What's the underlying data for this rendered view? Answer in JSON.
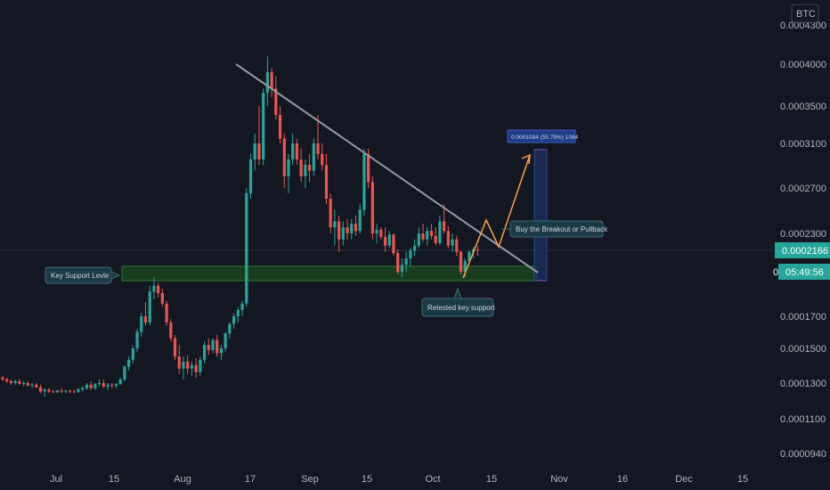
{
  "chart_data": {
    "type": "candlestick",
    "symbol_badge": "BTC",
    "price_axis_ticks": [
      "0.0004300",
      "0.0004000",
      "0.0003500",
      "0.0003100",
      "0.0002700",
      "0.0002300",
      "0.0001700",
      "0.0001500",
      "0.0001300",
      "0.0001100",
      "0.0000940"
    ],
    "time_axis_ticks": [
      "Jul",
      "15",
      "Aug",
      "17",
      "Sep",
      "15",
      "Oct",
      "15",
      "Nov",
      "16",
      "Dec",
      "15"
    ],
    "last_price": "0.0002166",
    "countdown": "05:49:56",
    "countdown_prefix": "0",
    "annotations": {
      "measure": "0.0001084 (55.79%) 1084",
      "breakout": "Buy the Breakout or Pullback",
      "support": "Key Support Levle",
      "retest": "Retested key support"
    },
    "ohlc": [
      [
        0.000133,
        0.000134,
        0.000131,
        0.000132
      ],
      [
        0.000132,
        0.000133,
        0.00013,
        0.000131
      ],
      [
        0.000131,
        0.000132,
        0.000129,
        0.00013
      ],
      [
        0.00013,
        0.000132,
        0.000129,
        0.000131
      ],
      [
        0.000131,
        0.000132,
        0.000129,
        0.0001295
      ],
      [
        0.0001295,
        0.000131,
        0.000128,
        0.00013
      ],
      [
        0.00013,
        0.000131,
        0.000128,
        0.0001285
      ],
      [
        0.0001285,
        0.00013,
        0.000127,
        0.000129
      ],
      [
        0.000129,
        0.00013,
        0.000127,
        0.0001275
      ],
      [
        0.0001275,
        0.000129,
        0.000124,
        0.000125
      ],
      [
        0.000125,
        0.000127,
        0.000122,
        0.000126
      ],
      [
        0.000126,
        0.000127,
        0.000124,
        0.000125
      ],
      [
        0.000125,
        0.000126,
        0.000124,
        0.0001245
      ],
      [
        0.0001245,
        0.000126,
        0.000124,
        0.0001255
      ],
      [
        0.0001255,
        0.000127,
        0.000124,
        0.000125
      ],
      [
        0.000125,
        0.000126,
        0.000124,
        0.0001255
      ],
      [
        0.0001255,
        0.000126,
        0.000124,
        0.000125
      ],
      [
        0.000125,
        0.000126,
        0.000124,
        0.0001248
      ],
      [
        0.0001248,
        0.000127,
        0.000124,
        0.0001262
      ],
      [
        0.0001262,
        0.000128,
        0.000125,
        0.000127
      ],
      [
        0.000127,
        0.00013,
        0.000126,
        0.000129
      ],
      [
        0.000129,
        0.000131,
        0.000126,
        0.000127
      ],
      [
        0.000127,
        0.00013,
        0.000126,
        0.0001295
      ],
      [
        0.0001295,
        0.000132,
        0.000128,
        0.00013
      ],
      [
        0.00013,
        0.000132,
        0.000127,
        0.000128
      ],
      [
        0.000128,
        0.00013,
        0.000126,
        0.000129
      ],
      [
        0.000129,
        0.00013,
        0.000127,
        0.0001285
      ],
      [
        0.0001285,
        0.00013,
        0.000127,
        0.0001295
      ],
      [
        0.0001295,
        0.000133,
        0.000129,
        0.000132
      ],
      [
        0.000132,
        0.00014,
        0.000131,
        0.000139
      ],
      [
        0.000139,
        0.000145,
        0.000137,
        0.000143
      ],
      [
        0.000143,
        0.000152,
        0.000141,
        0.00015
      ],
      [
        0.00015,
        0.000162,
        0.000148,
        0.00016
      ],
      [
        0.00016,
        0.000172,
        0.000157,
        0.00017
      ],
      [
        0.00017,
        0.000179,
        0.000164,
        0.000166
      ],
      [
        0.000166,
        0.00019,
        0.000164,
        0.000186
      ],
      [
        0.000186,
        0.000196,
        0.000181,
        0.00019
      ],
      [
        0.00019,
        0.000192,
        0.000182,
        0.000185
      ],
      [
        0.000185,
        0.000188,
        0.000176,
        0.000178
      ],
      [
        0.000178,
        0.00018,
        0.000164,
        0.000166
      ],
      [
        0.000166,
        0.000168,
        0.000154,
        0.000156
      ],
      [
        0.000156,
        0.000158,
        0.000143,
        0.000145
      ],
      [
        0.000145,
        0.000152,
        0.000135,
        0.000138
      ],
      [
        0.000138,
        0.000145,
        0.000132,
        0.000142
      ],
      [
        0.000142,
        0.000146,
        0.000135,
        0.000138
      ],
      [
        0.000138,
        0.000142,
        0.000134,
        0.00014
      ],
      [
        0.00014,
        0.000144,
        0.000133,
        0.000136
      ],
      [
        0.000136,
        0.000145,
        0.000134,
        0.000143
      ],
      [
        0.000143,
        0.000154,
        0.000141,
        0.000152
      ],
      [
        0.000152,
        0.000156,
        0.000146,
        0.000149
      ],
      [
        0.000149,
        0.000156,
        0.000147,
        0.000155
      ],
      [
        0.000155,
        0.000158,
        0.000145,
        0.000147
      ],
      [
        0.000147,
        0.000152,
        0.000143,
        0.00015
      ],
      [
        0.00015,
        0.00016,
        0.000148,
        0.000159
      ],
      [
        0.000159,
        0.000166,
        0.000156,
        0.000165
      ],
      [
        0.000165,
        0.000172,
        0.000162,
        0.00017
      ],
      [
        0.00017,
        0.000176,
        0.000166,
        0.000174
      ],
      [
        0.000174,
        0.00018,
        0.00017,
        0.000178
      ],
      [
        0.000178,
        0.00027,
        0.000176,
        0.000265
      ],
      [
        0.000265,
        0.0003,
        0.00026,
        0.000295
      ],
      [
        0.000295,
        0.00032,
        0.000285,
        0.00031
      ],
      [
        0.00031,
        0.00035,
        0.00029,
        0.000295
      ],
      [
        0.000295,
        0.00037,
        0.00029,
        0.000365
      ],
      [
        0.000365,
        0.00041,
        0.00035,
        0.00039
      ],
      [
        0.00039,
        0.000395,
        0.00036,
        0.00037
      ],
      [
        0.00037,
        0.000385,
        0.000335,
        0.00034
      ],
      [
        0.00034,
        0.00035,
        0.00031,
        0.000315
      ],
      [
        0.000315,
        0.00032,
        0.00027,
        0.00028
      ],
      [
        0.00028,
        0.0003,
        0.000265,
        0.000295
      ],
      [
        0.000295,
        0.00032,
        0.00029,
        0.00031
      ],
      [
        0.00031,
        0.000315,
        0.00029,
        0.000295
      ],
      [
        0.000295,
        0.000305,
        0.000275,
        0.00028
      ],
      [
        0.00028,
        0.000295,
        0.00027,
        0.00029
      ],
      [
        0.00029,
        0.0003,
        0.000275,
        0.000285
      ],
      [
        0.000285,
        0.000315,
        0.00028,
        0.00031
      ],
      [
        0.00031,
        0.00034,
        0.000295,
        0.0003
      ],
      [
        0.0003,
        0.00031,
        0.000285,
        0.00029
      ],
      [
        0.00029,
        0.0003,
        0.000255,
        0.00026
      ],
      [
        0.00026,
        0.000265,
        0.00023,
        0.000235
      ],
      [
        0.000235,
        0.00025,
        0.00022,
        0.00024
      ],
      [
        0.00024,
        0.000245,
        0.000215,
        0.000225
      ],
      [
        0.000225,
        0.00024,
        0.00022,
        0.000235
      ],
      [
        0.000235,
        0.000242,
        0.000225,
        0.00023
      ],
      [
        0.00023,
        0.000242,
        0.000225,
        0.000238
      ],
      [
        0.000238,
        0.000245,
        0.000228,
        0.000232
      ],
      [
        0.000232,
        0.000255,
        0.00023,
        0.00025
      ],
      [
        0.00025,
        0.000305,
        0.000245,
        0.0003
      ],
      [
        0.0003,
        0.000305,
        0.00027,
        0.000275
      ],
      [
        0.000275,
        0.00028,
        0.000225,
        0.00023
      ],
      [
        0.00023,
        0.000238,
        0.000222,
        0.000233
      ],
      [
        0.000233,
        0.000235,
        0.000225,
        0.000227
      ],
      [
        0.000227,
        0.000235,
        0.000215,
        0.00022
      ],
      [
        0.00022,
        0.000232,
        0.000218,
        0.000229
      ],
      [
        0.000229,
        0.00023,
        0.000212,
        0.000214
      ],
      [
        0.000214,
        0.000217,
        0.000198,
        0.0002
      ],
      [
        0.0002,
        0.00021,
        0.000196,
        0.000205
      ],
      [
        0.000205,
        0.000215,
        0.0002,
        0.00021
      ],
      [
        0.00021,
        0.000218,
        0.000204,
        0.000216
      ],
      [
        0.000216,
        0.000225,
        0.000212,
        0.00022
      ],
      [
        0.00022,
        0.000235,
        0.000218,
        0.00023
      ],
      [
        0.00023,
        0.000238,
        0.000223,
        0.000225
      ],
      [
        0.000225,
        0.000235,
        0.00022,
        0.000232
      ],
      [
        0.000232,
        0.000238,
        0.000225,
        0.000228
      ],
      [
        0.000228,
        0.000235,
        0.00022,
        0.000222
      ],
      [
        0.000222,
        0.000245,
        0.00022,
        0.00024
      ],
      [
        0.00024,
        0.000255,
        0.00023,
        0.000232
      ],
      [
        0.000232,
        0.000236,
        0.000218,
        0.00022
      ],
      [
        0.00022,
        0.00023,
        0.000215,
        0.000225
      ],
      [
        0.000225,
        0.000228,
        0.000212,
        0.000215
      ],
      [
        0.000215,
        0.000216,
        0.000198,
        0.0002
      ],
      [
        0.0002,
        0.00021,
        0.000196,
        0.000208
      ],
      [
        0.000208,
        0.000216,
        0.000205,
        0.000215
      ],
      [
        0.000215,
        0.000219,
        0.00021,
        0.000217
      ],
      [
        0.000217,
        0.00022,
        0.000212,
        0.0002166
      ]
    ]
  }
}
